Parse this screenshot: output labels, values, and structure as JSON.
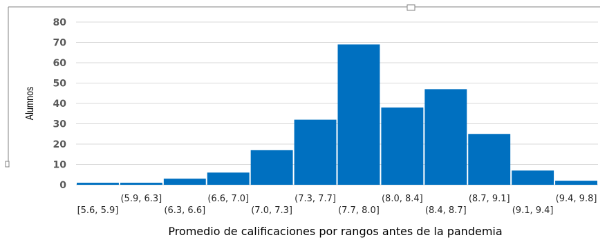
{
  "chart_data": {
    "type": "bar",
    "title": "",
    "xlabel": "Promedio de calificaciones por rangos antes de la pandemia",
    "ylabel": "Alumnos",
    "categories": [
      "[5.6, 5.9]",
      "(5.9, 6.3]",
      "(6.3, 6.6]",
      "(6.6, 7.0]",
      "(7.0, 7.3]",
      "(7.3, 7.7]",
      "(7.7, 8.0]",
      "(8.0, 8.4]",
      "(8.4, 8.7]",
      "(8.7, 9.1]",
      "(9.1, 9.4]",
      "(9.4, 9.8]"
    ],
    "values": [
      1,
      1,
      3,
      6,
      17,
      32,
      69,
      38,
      47,
      25,
      7,
      2
    ],
    "ylim": [
      0,
      80
    ],
    "yticks": [
      "0",
      "10",
      "20",
      "30",
      "40",
      "50",
      "60",
      "70",
      "80"
    ],
    "grid": true,
    "legend": "none",
    "bar_color": "#0070c0"
  }
}
